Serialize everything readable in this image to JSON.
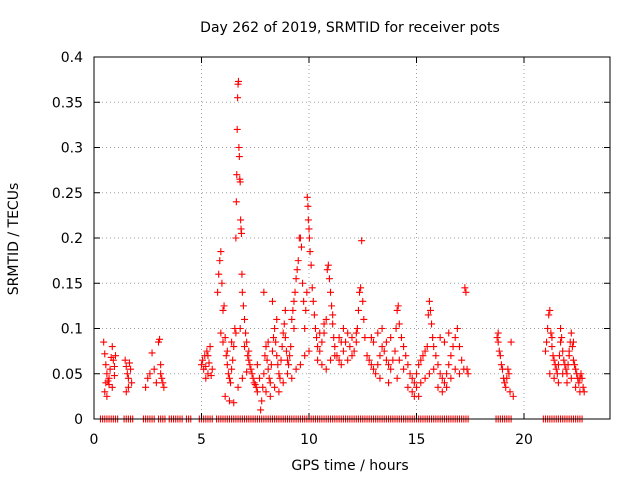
{
  "chart_data": {
    "type": "scatter",
    "title": "Day 262 of 2019, SRMTID for receiver pots",
    "xlabel": "GPS time / hours",
    "ylabel": "SRMTID / TECUs",
    "xlim": [
      0,
      24
    ],
    "ylim": [
      0,
      0.4
    ],
    "xticks": [
      0,
      5,
      10,
      15,
      20
    ],
    "yticks": [
      0,
      0.05,
      0.1,
      0.15,
      0.2,
      0.25,
      0.3,
      0.35,
      0.4
    ],
    "ytick_labels": [
      "0",
      "0.05",
      "0.1",
      "0.15",
      "0.2",
      "0.25",
      "0.3",
      "0.35",
      "0.4"
    ],
    "grid": true,
    "marker": "+",
    "color": "#ff0000",
    "zero_points_x": [
      0.3,
      0.4,
      0.5,
      0.6,
      0.7,
      0.8,
      0.9,
      1.0,
      1.1,
      1.4,
      1.5,
      1.6,
      1.7,
      1.8,
      2.3,
      2.4,
      2.5,
      2.6,
      2.7,
      2.8,
      3.0,
      3.1,
      3.2,
      3.3,
      3.5,
      3.6,
      3.7,
      3.8,
      3.9,
      4.0,
      4.1,
      4.3,
      4.4,
      4.5,
      4.9,
      5.0,
      5.1,
      5.2,
      5.3,
      5.4,
      5.5,
      5.7,
      5.8,
      5.9,
      6.0,
      6.1,
      6.2,
      6.3,
      6.4,
      6.5,
      6.6,
      6.7,
      6.8,
      6.9,
      7.0,
      7.1,
      7.2,
      7.3,
      7.4,
      7.5,
      7.6,
      7.7,
      7.8,
      7.9,
      8.0,
      8.1,
      8.2,
      8.3,
      8.4,
      8.5,
      8.6,
      8.7,
      8.8,
      8.9,
      9.0,
      9.1,
      9.2,
      9.3,
      9.4,
      9.5,
      9.6,
      9.7,
      9.8,
      9.9,
      10.0,
      10.1,
      10.2,
      10.3,
      10.4,
      10.5,
      10.6,
      10.7,
      10.8,
      10.9,
      11.0,
      11.1,
      11.2,
      11.3,
      11.4,
      11.5,
      11.6,
      11.7,
      11.8,
      11.9,
      12.0,
      12.1,
      12.2,
      12.3,
      12.4,
      12.5,
      12.6,
      12.7,
      12.8,
      12.9,
      13.0,
      13.1,
      13.2,
      13.3,
      13.4,
      13.5,
      13.6,
      13.7,
      13.8,
      13.9,
      14.0,
      14.1,
      14.2,
      14.3,
      14.4,
      14.5,
      14.6,
      14.7,
      14.8,
      14.9,
      15.0,
      15.1,
      15.2,
      15.3,
      15.4,
      15.5,
      15.6,
      15.7,
      15.8,
      15.9,
      16.0,
      16.1,
      16.2,
      16.3,
      16.4,
      16.5,
      16.6,
      16.7,
      16.8,
      16.9,
      17.0,
      17.1,
      17.2,
      17.3,
      17.4,
      18.7,
      18.8,
      18.9,
      19.0,
      19.1,
      19.2,
      19.3,
      19.4,
      20.9,
      21.0,
      21.1,
      21.2,
      21.3,
      21.4,
      21.5,
      21.6,
      21.7,
      21.8,
      21.9,
      22.0,
      22.1,
      22.2,
      22.3,
      22.4,
      22.5,
      22.6,
      22.7
    ],
    "points": [
      [
        0.45,
        0.085
      ],
      [
        0.5,
        0.072
      ],
      [
        0.55,
        0.06
      ],
      [
        0.6,
        0.05
      ],
      [
        0.65,
        0.042
      ],
      [
        0.7,
        0.038
      ],
      [
        0.75,
        0.055
      ],
      [
        0.8,
        0.068
      ],
      [
        0.85,
        0.08
      ],
      [
        0.9,
        0.065
      ],
      [
        0.95,
        0.058
      ],
      [
        1.0,
        0.07
      ],
      [
        0.5,
        0.03
      ],
      [
        0.6,
        0.025
      ],
      [
        0.7,
        0.045
      ],
      [
        0.85,
        0.035
      ],
      [
        0.95,
        0.048
      ],
      [
        0.55,
        0.04
      ],
      [
        1.45,
        0.065
      ],
      [
        1.5,
        0.058
      ],
      [
        1.55,
        0.05
      ],
      [
        1.6,
        0.045
      ],
      [
        1.65,
        0.062
      ],
      [
        1.7,
        0.055
      ],
      [
        1.75,
        0.04
      ],
      [
        1.5,
        0.03
      ],
      [
        1.6,
        0.035
      ],
      [
        2.4,
        0.035
      ],
      [
        2.5,
        0.045
      ],
      [
        2.6,
        0.05
      ],
      [
        2.7,
        0.073
      ],
      [
        2.8,
        0.055
      ],
      [
        2.9,
        0.04
      ],
      [
        3.0,
        0.085
      ],
      [
        3.05,
        0.088
      ],
      [
        3.1,
        0.06
      ],
      [
        3.15,
        0.045
      ],
      [
        3.2,
        0.04
      ],
      [
        3.25,
        0.035
      ],
      [
        3.1,
        0.05
      ],
      [
        5.0,
        0.06
      ],
      [
        5.05,
        0.065
      ],
      [
        5.1,
        0.055
      ],
      [
        5.15,
        0.07
      ],
      [
        5.2,
        0.058
      ],
      [
        5.25,
        0.075
      ],
      [
        5.3,
        0.05
      ],
      [
        5.35,
        0.062
      ],
      [
        5.4,
        0.08
      ],
      [
        5.45,
        0.048
      ],
      [
        5.5,
        0.055
      ],
      [
        5.2,
        0.045
      ],
      [
        5.3,
        0.07
      ],
      [
        5.75,
        0.14
      ],
      [
        5.8,
        0.16
      ],
      [
        5.85,
        0.175
      ],
      [
        5.9,
        0.185
      ],
      [
        5.95,
        0.15
      ],
      [
        6.0,
        0.12
      ],
      [
        6.05,
        0.125
      ],
      [
        6.1,
        0.09
      ],
      [
        6.15,
        0.07
      ],
      [
        6.2,
        0.06
      ],
      [
        6.25,
        0.05
      ],
      [
        6.3,
        0.045
      ],
      [
        6.35,
        0.04
      ],
      [
        6.4,
        0.055
      ],
      [
        6.45,
        0.065
      ],
      [
        6.5,
        0.08
      ],
      [
        6.55,
        0.1
      ],
      [
        6.6,
        0.2
      ],
      [
        6.62,
        0.24
      ],
      [
        6.64,
        0.27
      ],
      [
        6.66,
        0.32
      ],
      [
        6.68,
        0.355
      ],
      [
        6.7,
        0.37
      ],
      [
        6.72,
        0.373
      ],
      [
        6.74,
        0.3
      ],
      [
        6.76,
        0.29
      ],
      [
        6.78,
        0.265
      ],
      [
        6.8,
        0.262
      ],
      [
        6.82,
        0.22
      ],
      [
        6.84,
        0.21
      ],
      [
        6.86,
        0.205
      ],
      [
        6.88,
        0.16
      ],
      [
        6.9,
        0.14
      ],
      [
        6.95,
        0.125
      ],
      [
        7.0,
        0.11
      ],
      [
        7.05,
        0.095
      ],
      [
        7.1,
        0.085
      ],
      [
        7.15,
        0.07
      ],
      [
        7.2,
        0.065
      ],
      [
        7.25,
        0.06
      ],
      [
        7.3,
        0.055
      ],
      [
        7.35,
        0.05
      ],
      [
        7.4,
        0.045
      ],
      [
        7.45,
        0.04
      ],
      [
        7.5,
        0.038
      ],
      [
        7.55,
        0.035
      ],
      [
        7.6,
        0.03
      ],
      [
        6.1,
        0.025
      ],
      [
        6.3,
        0.02
      ],
      [
        6.5,
        0.018
      ],
      [
        6.7,
        0.035
      ],
      [
        6.9,
        0.045
      ],
      [
        7.1,
        0.052
      ],
      [
        6.2,
        0.075
      ],
      [
        6.4,
        0.085
      ],
      [
        6.6,
        0.095
      ],
      [
        6.8,
        0.1
      ],
      [
        7.0,
        0.08
      ],
      [
        7.2,
        0.075
      ],
      [
        5.9,
        0.095
      ],
      [
        6.0,
        0.085
      ],
      [
        7.6,
        0.06
      ],
      [
        7.7,
        0.045
      ],
      [
        7.75,
        0.01
      ],
      [
        7.8,
        0.02
      ],
      [
        7.85,
        0.035
      ],
      [
        7.9,
        0.05
      ],
      [
        7.95,
        0.07
      ],
      [
        8.0,
        0.08
      ],
      [
        8.05,
        0.065
      ],
      [
        8.1,
        0.055
      ],
      [
        8.15,
        0.045
      ],
      [
        8.2,
        0.04
      ],
      [
        8.25,
        0.06
      ],
      [
        8.3,
        0.075
      ],
      [
        8.35,
        0.09
      ],
      [
        8.4,
        0.1
      ],
      [
        8.45,
        0.085
      ],
      [
        8.5,
        0.07
      ],
      [
        8.55,
        0.06
      ],
      [
        8.6,
        0.05
      ],
      [
        8.65,
        0.045
      ],
      [
        8.7,
        0.065
      ],
      [
        8.75,
        0.08
      ],
      [
        8.8,
        0.095
      ],
      [
        8.85,
        0.105
      ],
      [
        8.9,
        0.09
      ],
      [
        8.95,
        0.075
      ],
      [
        9.0,
        0.065
      ],
      [
        9.05,
        0.06
      ],
      [
        9.1,
        0.07
      ],
      [
        9.15,
        0.08
      ],
      [
        9.2,
        0.11
      ],
      [
        9.25,
        0.12
      ],
      [
        9.3,
        0.13
      ],
      [
        9.35,
        0.14
      ],
      [
        9.4,
        0.155
      ],
      [
        9.45,
        0.165
      ],
      [
        9.5,
        0.175
      ],
      [
        9.55,
        0.2
      ],
      [
        9.6,
        0.2
      ],
      [
        9.65,
        0.19
      ],
      [
        9.7,
        0.15
      ],
      [
        9.75,
        0.13
      ],
      [
        9.8,
        0.1
      ],
      [
        9.85,
        0.12
      ],
      [
        9.9,
        0.14
      ],
      [
        9.92,
        0.245
      ],
      [
        9.95,
        0.235
      ],
      [
        9.97,
        0.22
      ],
      [
        10.0,
        0.21
      ],
      [
        10.02,
        0.2
      ],
      [
        10.05,
        0.185
      ],
      [
        10.1,
        0.17
      ],
      [
        10.15,
        0.145
      ],
      [
        10.2,
        0.13
      ],
      [
        10.25,
        0.115
      ],
      [
        10.3,
        0.1
      ],
      [
        10.35,
        0.09
      ],
      [
        10.4,
        0.08
      ],
      [
        8.0,
        0.03
      ],
      [
        8.2,
        0.025
      ],
      [
        8.4,
        0.035
      ],
      [
        8.6,
        0.03
      ],
      [
        8.8,
        0.04
      ],
      [
        9.0,
        0.05
      ],
      [
        9.2,
        0.045
      ],
      [
        9.4,
        0.055
      ],
      [
        9.6,
        0.06
      ],
      [
        9.8,
        0.07
      ],
      [
        10.0,
        0.075
      ],
      [
        8.1,
        0.085
      ],
      [
        8.5,
        0.11
      ],
      [
        8.9,
        0.12
      ],
      [
        9.3,
        0.1
      ],
      [
        7.9,
        0.14
      ],
      [
        8.3,
        0.13
      ],
      [
        10.4,
        0.065
      ],
      [
        10.5,
        0.075
      ],
      [
        10.6,
        0.085
      ],
      [
        10.7,
        0.095
      ],
      [
        10.8,
        0.11
      ],
      [
        10.85,
        0.165
      ],
      [
        10.9,
        0.17
      ],
      [
        10.95,
        0.155
      ],
      [
        11.0,
        0.14
      ],
      [
        11.05,
        0.125
      ],
      [
        11.1,
        0.105
      ],
      [
        11.15,
        0.09
      ],
      [
        11.2,
        0.08
      ],
      [
        11.3,
        0.07
      ],
      [
        11.4,
        0.065
      ],
      [
        11.5,
        0.06
      ],
      [
        11.6,
        0.075
      ],
      [
        11.7,
        0.085
      ],
      [
        11.8,
        0.095
      ],
      [
        11.9,
        0.08
      ],
      [
        12.0,
        0.07
      ],
      [
        12.1,
        0.075
      ],
      [
        12.2,
        0.085
      ],
      [
        12.25,
        0.1
      ],
      [
        12.3,
        0.12
      ],
      [
        12.35,
        0.14
      ],
      [
        12.4,
        0.145
      ],
      [
        12.45,
        0.197
      ],
      [
        12.5,
        0.13
      ],
      [
        12.55,
        0.11
      ],
      [
        12.6,
        0.09
      ],
      [
        10.6,
        0.06
      ],
      [
        10.8,
        0.055
      ],
      [
        11.0,
        0.065
      ],
      [
        11.2,
        0.07
      ],
      [
        11.4,
        0.09
      ],
      [
        11.6,
        0.1
      ],
      [
        11.8,
        0.065
      ],
      [
        12.0,
        0.09
      ],
      [
        12.2,
        0.095
      ],
      [
        10.5,
        0.095
      ],
      [
        10.7,
        0.105
      ],
      [
        11.1,
        0.115
      ],
      [
        11.5,
        0.085
      ],
      [
        12.7,
        0.07
      ],
      [
        12.8,
        0.065
      ],
      [
        12.9,
        0.06
      ],
      [
        13.0,
        0.055
      ],
      [
        13.1,
        0.05
      ],
      [
        13.2,
        0.06
      ],
      [
        13.3,
        0.07
      ],
      [
        13.4,
        0.08
      ],
      [
        13.5,
        0.075
      ],
      [
        13.6,
        0.065
      ],
      [
        13.7,
        0.06
      ],
      [
        13.8,
        0.055
      ],
      [
        13.9,
        0.065
      ],
      [
        14.0,
        0.075
      ],
      [
        14.05,
        0.1
      ],
      [
        14.1,
        0.12
      ],
      [
        14.15,
        0.125
      ],
      [
        14.2,
        0.105
      ],
      [
        14.3,
        0.09
      ],
      [
        14.4,
        0.08
      ],
      [
        14.5,
        0.07
      ],
      [
        14.6,
        0.06
      ],
      [
        14.7,
        0.05
      ],
      [
        14.8,
        0.045
      ],
      [
        14.9,
        0.04
      ],
      [
        15.0,
        0.05
      ],
      [
        15.1,
        0.06
      ],
      [
        15.2,
        0.065
      ],
      [
        15.3,
        0.07
      ],
      [
        15.4,
        0.075
      ],
      [
        15.5,
        0.08
      ],
      [
        15.55,
        0.115
      ],
      [
        15.6,
        0.13
      ],
      [
        15.65,
        0.12
      ],
      [
        15.7,
        0.105
      ],
      [
        15.75,
        0.09
      ],
      [
        15.8,
        0.08
      ],
      [
        15.9,
        0.07
      ],
      [
        16.0,
        0.06
      ],
      [
        16.1,
        0.05
      ],
      [
        16.2,
        0.045
      ],
      [
        16.3,
        0.04
      ],
      [
        16.4,
        0.05
      ],
      [
        16.5,
        0.06
      ],
      [
        16.6,
        0.07
      ],
      [
        16.7,
        0.08
      ],
      [
        16.8,
        0.09
      ],
      [
        16.9,
        0.1
      ],
      [
        17.0,
        0.08
      ],
      [
        17.1,
        0.065
      ],
      [
        17.2,
        0.055
      ],
      [
        17.25,
        0.145
      ],
      [
        17.3,
        0.14
      ],
      [
        17.35,
        0.055
      ],
      [
        17.4,
        0.05
      ],
      [
        13.0,
        0.085
      ],
      [
        13.2,
        0.095
      ],
      [
        13.4,
        0.1
      ],
      [
        13.6,
        0.085
      ],
      [
        13.8,
        0.09
      ],
      [
        14.2,
        0.065
      ],
      [
        14.4,
        0.055
      ],
      [
        14.6,
        0.035
      ],
      [
        14.8,
        0.03
      ],
      [
        15.0,
        0.035
      ],
      [
        15.2,
        0.04
      ],
      [
        15.4,
        0.045
      ],
      [
        15.6,
        0.05
      ],
      [
        15.8,
        0.055
      ],
      [
        16.0,
        0.035
      ],
      [
        16.2,
        0.03
      ],
      [
        16.4,
        0.035
      ],
      [
        16.6,
        0.045
      ],
      [
        16.8,
        0.055
      ],
      [
        17.0,
        0.05
      ],
      [
        12.9,
        0.09
      ],
      [
        13.3,
        0.045
      ],
      [
        13.7,
        0.04
      ],
      [
        14.1,
        0.045
      ],
      [
        14.9,
        0.025
      ],
      [
        15.1,
        0.025
      ],
      [
        16.1,
        0.09
      ],
      [
        16.3,
        0.085
      ],
      [
        16.5,
        0.095
      ],
      [
        18.75,
        0.09
      ],
      [
        18.8,
        0.085
      ],
      [
        18.85,
        0.075
      ],
      [
        18.9,
        0.07
      ],
      [
        18.95,
        0.06
      ],
      [
        19.0,
        0.055
      ],
      [
        19.05,
        0.045
      ],
      [
        19.1,
        0.04
      ],
      [
        19.15,
        0.035
      ],
      [
        19.2,
        0.045
      ],
      [
        19.25,
        0.055
      ],
      [
        19.3,
        0.05
      ],
      [
        19.35,
        0.03
      ],
      [
        19.4,
        0.085
      ],
      [
        18.8,
        0.095
      ],
      [
        19.5,
        0.025
      ],
      [
        21.0,
        0.075
      ],
      [
        21.05,
        0.085
      ],
      [
        21.1,
        0.1
      ],
      [
        21.15,
        0.115
      ],
      [
        21.2,
        0.12
      ],
      [
        21.25,
        0.095
      ],
      [
        21.3,
        0.08
      ],
      [
        21.35,
        0.07
      ],
      [
        21.4,
        0.065
      ],
      [
        21.45,
        0.06
      ],
      [
        21.5,
        0.055
      ],
      [
        21.55,
        0.05
      ],
      [
        21.6,
        0.06
      ],
      [
        21.65,
        0.07
      ],
      [
        21.7,
        0.085
      ],
      [
        21.75,
        0.09
      ],
      [
        21.8,
        0.075
      ],
      [
        21.85,
        0.065
      ],
      [
        21.9,
        0.06
      ],
      [
        21.95,
        0.055
      ],
      [
        22.0,
        0.05
      ],
      [
        22.05,
        0.06
      ],
      [
        22.1,
        0.07
      ],
      [
        22.15,
        0.085
      ],
      [
        22.2,
        0.095
      ],
      [
        22.25,
        0.08
      ],
      [
        22.3,
        0.065
      ],
      [
        22.35,
        0.06
      ],
      [
        22.4,
        0.055
      ],
      [
        22.45,
        0.05
      ],
      [
        22.5,
        0.045
      ],
      [
        22.55,
        0.04
      ],
      [
        22.6,
        0.045
      ],
      [
        22.65,
        0.05
      ],
      [
        22.7,
        0.045
      ],
      [
        22.75,
        0.035
      ],
      [
        22.8,
        0.03
      ],
      [
        21.2,
        0.05
      ],
      [
        21.4,
        0.045
      ],
      [
        21.6,
        0.04
      ],
      [
        21.8,
        0.05
      ],
      [
        22.0,
        0.04
      ],
      [
        22.2,
        0.045
      ],
      [
        22.4,
        0.035
      ],
      [
        22.6,
        0.03
      ],
      [
        21.3,
        0.09
      ],
      [
        21.7,
        0.1
      ],
      [
        22.1,
        0.075
      ],
      [
        22.3,
        0.085
      ]
    ]
  }
}
